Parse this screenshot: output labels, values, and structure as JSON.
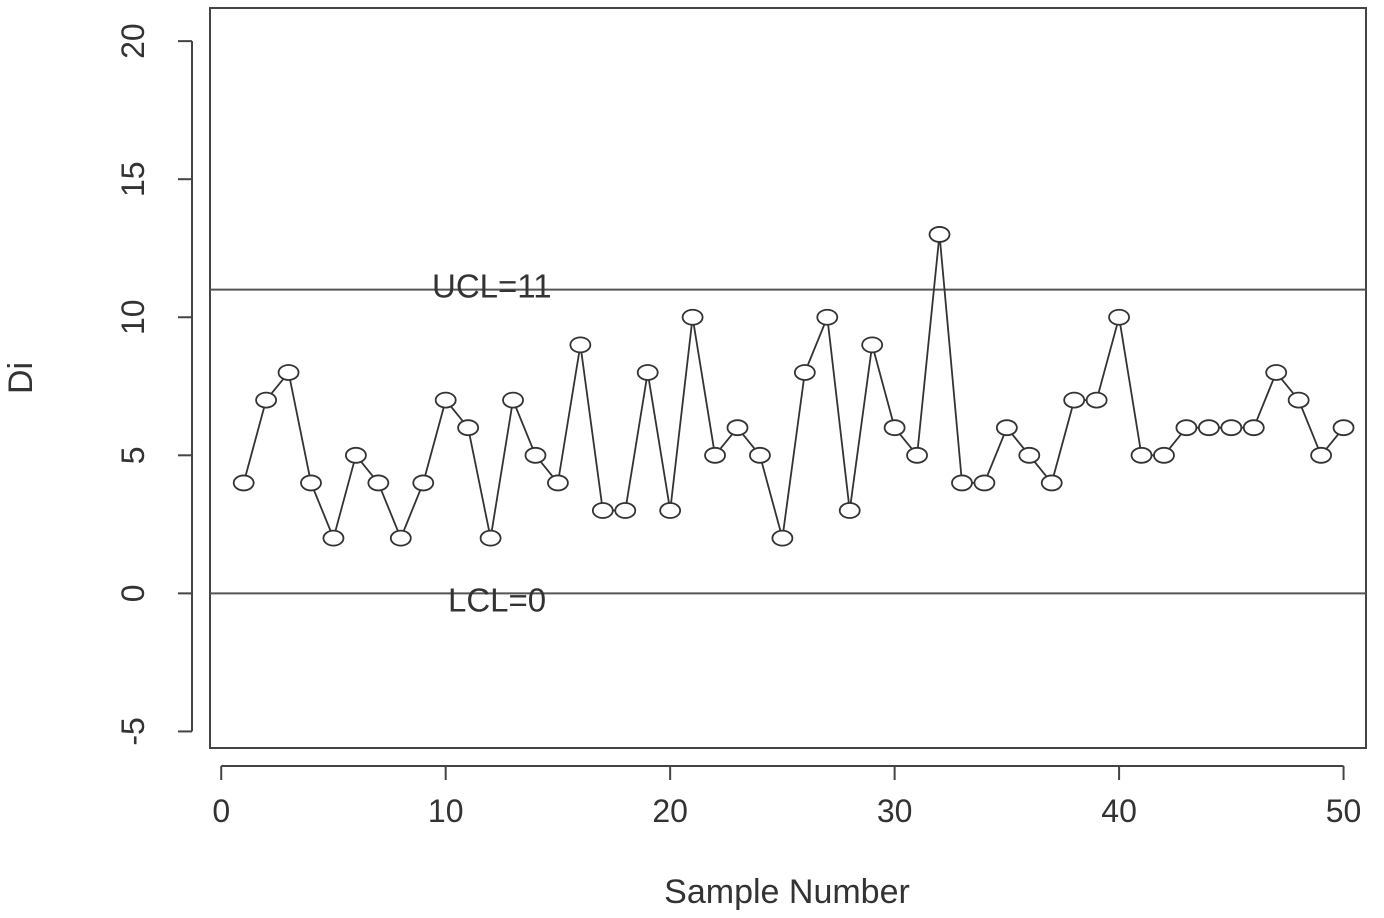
{
  "chart_data": {
    "type": "line",
    "xlabel": "Sample Number",
    "ylabel": "Di",
    "xlim": [
      -0.5,
      51
    ],
    "ylim": [
      -5.6,
      21.2
    ],
    "x_ticks": [
      "0",
      "10",
      "20",
      "30",
      "40",
      "50"
    ],
    "y_ticks": [
      "-5",
      "0",
      "5",
      "10",
      "15",
      "20"
    ],
    "grid": false,
    "marker": "open-circle",
    "series": [
      {
        "x": [
          1,
          2,
          3,
          4,
          5,
          6,
          7,
          8,
          9,
          10,
          11,
          12,
          13,
          14,
          15,
          16,
          17,
          18,
          19,
          20,
          21,
          22,
          23,
          24,
          25,
          26,
          27,
          28,
          29,
          30,
          31,
          32,
          33,
          34,
          35,
          36,
          37,
          38,
          39,
          40,
          41,
          42,
          43,
          44,
          45,
          46,
          47,
          48,
          49,
          50
        ],
        "values": [
          4,
          7,
          8,
          4,
          2,
          5,
          4,
          2,
          4,
          7,
          6,
          2,
          7,
          5,
          4,
          9,
          3,
          3,
          8,
          3,
          10,
          5,
          6,
          5,
          2,
          8,
          10,
          3,
          9,
          6,
          5,
          13,
          4,
          4,
          6,
          5,
          4,
          7,
          7,
          10,
          5,
          5,
          6,
          6,
          6,
          6,
          8,
          7,
          5,
          6
        ]
      }
    ],
    "control_limits": [
      {
        "label": "UCL=11",
        "value": 11
      },
      {
        "label": "LCL=0",
        "value": 0
      }
    ],
    "colors": {
      "line": "#333333",
      "axis": "#444444",
      "limit": "#555555"
    }
  }
}
